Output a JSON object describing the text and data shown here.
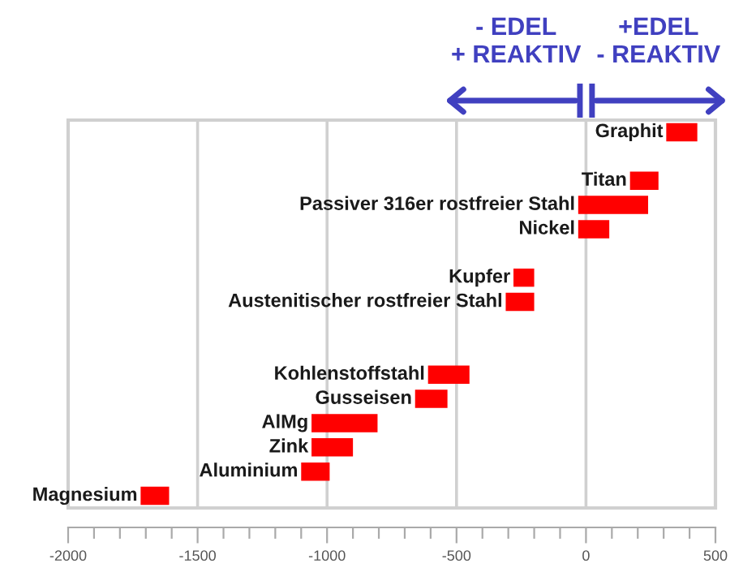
{
  "chart_data": {
    "type": "bar",
    "orientation": "horizontal",
    "categories": [
      "Graphit",
      null,
      "Titan",
      "Passiver 316er rostfreier Stahl",
      "Nickel",
      null,
      "Kupfer",
      "Austenitischer rostfreier Stahl",
      null,
      null,
      "Kohlenstoffstahl",
      "Gusseisen",
      "AlMg",
      "Zink",
      "Aluminium",
      "Magnesium"
    ],
    "base": [
      310,
      null,
      170,
      -30,
      -30,
      null,
      -280,
      -310,
      null,
      null,
      -610,
      -660,
      -1060,
      -1060,
      -1100,
      -1720
    ],
    "values": [
      120,
      null,
      110,
      270,
      120,
      null,
      80,
      110,
      null,
      null,
      160,
      125,
      255,
      160,
      110,
      110
    ],
    "color": "#ff0000",
    "xlim": [
      -2000,
      500
    ],
    "xticks": [
      -2000,
      {
        "value": -1900,
        "label": null
      },
      {
        "value": -1800,
        "label": null
      },
      {
        "value": -1700,
        "label": null
      },
      {
        "value": -1600,
        "label": null
      },
      -1500,
      {
        "value": -1400,
        "label": null
      },
      {
        "value": -1300,
        "label": null
      },
      {
        "value": -1200,
        "label": null
      },
      {
        "value": -1100,
        "label": null
      },
      -1000,
      {
        "value": -900,
        "label": null
      },
      {
        "value": -800,
        "label": null
      },
      {
        "value": -700,
        "label": null
      },
      {
        "value": -600,
        "label": null
      },
      -500,
      {
        "value": -400,
        "label": null
      },
      {
        "value": -300,
        "label": null
      },
      {
        "value": -200,
        "label": null
      },
      {
        "value": -100,
        "label": null
      },
      0,
      {
        "value": 100,
        "label": null
      },
      {
        "value": 200,
        "label": null
      },
      {
        "value": 300,
        "label": null
      },
      {
        "value": 400,
        "label": null
      },
      500
    ],
    "grid": "x",
    "annotations": [
      "- EDEL\n+ REAKTIV",
      "+EDEL\n- REAKTIV"
    ]
  }
}
